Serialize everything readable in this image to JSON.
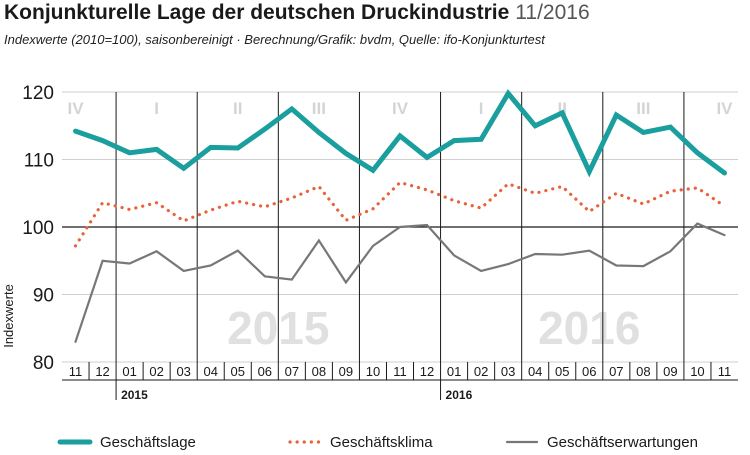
{
  "header": {
    "title": "Konjunkturelle Lage der deutschen Druckindustrie",
    "date": "11/2016",
    "subtitle": "Indexwerte (2010=100), saisonbereinigt · Berechnung/Grafik: bvdm, Quelle: ifo-Konjunkturtest"
  },
  "chart_data": {
    "type": "line",
    "ylabel": "Indexwerte",
    "ylim": [
      80,
      120
    ],
    "y_ticks": [
      80,
      90,
      100,
      110,
      120
    ],
    "reference_line": 100,
    "categories": [
      "11",
      "12",
      "01",
      "02",
      "03",
      "04",
      "05",
      "06",
      "07",
      "08",
      "09",
      "10",
      "11",
      "12",
      "01",
      "02",
      "03",
      "04",
      "05",
      "06",
      "07",
      "08",
      "09",
      "10",
      "11"
    ],
    "year_labels": [
      {
        "label": "2015",
        "start_index": 2
      },
      {
        "label": "2016",
        "start_index": 14
      }
    ],
    "watermarks": [
      {
        "label": "2015",
        "center_index": 7.5
      },
      {
        "label": "2016",
        "center_index": 19
      }
    ],
    "quarter_labels": [
      {
        "label": "IV",
        "center_index": 0
      },
      {
        "label": "I",
        "center_index": 3
      },
      {
        "label": "II",
        "center_index": 6
      },
      {
        "label": "III",
        "center_index": 9
      },
      {
        "label": "IV",
        "center_index": 12
      },
      {
        "label": "I",
        "center_index": 15
      },
      {
        "label": "II",
        "center_index": 18
      },
      {
        "label": "III",
        "center_index": 21
      },
      {
        "label": "IV",
        "center_index": 24
      }
    ],
    "series": [
      {
        "name": "Geschäftslage",
        "color": "#1a9e9e",
        "style": "solid-thick",
        "values": [
          114.2,
          112.8,
          111.0,
          111.5,
          108.7,
          111.8,
          111.7,
          114.5,
          117.5,
          114.0,
          110.9,
          108.4,
          113.5,
          110.3,
          112.8,
          113.0,
          119.8,
          115.0,
          116.9,
          108.2,
          116.6,
          114.0,
          114.8,
          111.0,
          108.0
        ]
      },
      {
        "name": "Geschäftsklima",
        "color": "#e8623a",
        "style": "dotted",
        "values": [
          97.2,
          103.6,
          102.6,
          103.6,
          100.9,
          102.5,
          103.8,
          103.0,
          104.3,
          106.0,
          101.0,
          102.7,
          106.6,
          105.5,
          103.9,
          102.8,
          106.4,
          105.0,
          106.0,
          102.3,
          105.0,
          103.4,
          105.3,
          105.8,
          103.1
        ]
      },
      {
        "name": "Geschäftserwartungen",
        "color": "#777777",
        "style": "solid-thin",
        "values": [
          83.0,
          95.0,
          94.6,
          96.4,
          93.5,
          94.3,
          96.5,
          92.7,
          92.2,
          98.0,
          91.8,
          97.2,
          100.0,
          100.3,
          95.8,
          93.5,
          94.5,
          96.0,
          95.9,
          96.5,
          94.3,
          94.2,
          96.4,
          100.5,
          98.8
        ]
      }
    ]
  }
}
